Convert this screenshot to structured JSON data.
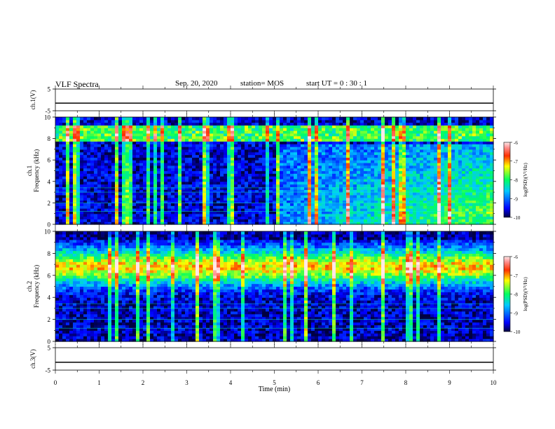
{
  "header": {
    "title": "VLF Spectra",
    "date": "Sep. 20, 2020",
    "station": "station= MOS",
    "start": "start UT = 0 : 30 : 1"
  },
  "chart_data": [
    {
      "type": "line",
      "panel": "ch1-voltage",
      "ylabel": "ch.1(V)",
      "ylim": [
        -5,
        5
      ],
      "yticks": [
        "5",
        "-5"
      ],
      "x": [
        0,
        10
      ],
      "series": [
        {
          "values": [
            -1.5,
            -1.5
          ]
        }
      ]
    },
    {
      "type": "heatmap",
      "panel": "ch1-spectrogram",
      "ylabel": "ch.1\nFrequency (kHz)",
      "ylim": [
        0,
        10
      ],
      "yticks": [
        "0",
        "2",
        "4",
        "6",
        "8",
        "10"
      ],
      "colorbar": {
        "label": "log(PSD)(V²/Hz)",
        "range": [
          -10,
          -6
        ],
        "ticks": [
          "-6",
          "-7",
          "-8",
          "-9",
          "-10"
        ]
      }
    },
    {
      "type": "heatmap",
      "panel": "ch2-spectrogram",
      "ylabel": "ch.2\nFrequency (kHz)",
      "ylim": [
        0,
        10
      ],
      "yticks": [
        "0",
        "2",
        "4",
        "6",
        "8",
        "10"
      ],
      "colorbar": {
        "label": "log(PSD)(V²/Hz)",
        "range": [
          -10,
          -6
        ],
        "ticks": [
          "-6",
          "-7",
          "-8",
          "-9",
          "-10"
        ]
      }
    },
    {
      "type": "line",
      "panel": "ch3-voltage",
      "ylabel": "ch.3(V)",
      "ylim": [
        -5,
        5
      ],
      "yticks": [
        "5",
        "-5"
      ],
      "x": [
        0,
        10
      ],
      "series": [
        {
          "values": [
            -1.5,
            -1.5
          ]
        }
      ]
    }
  ],
  "xaxis": {
    "label": "Time (min)",
    "range": [
      0,
      10
    ],
    "ticks": [
      "0",
      "1",
      "2",
      "3",
      "4",
      "5",
      "6",
      "7",
      "8",
      "9",
      "10"
    ]
  }
}
